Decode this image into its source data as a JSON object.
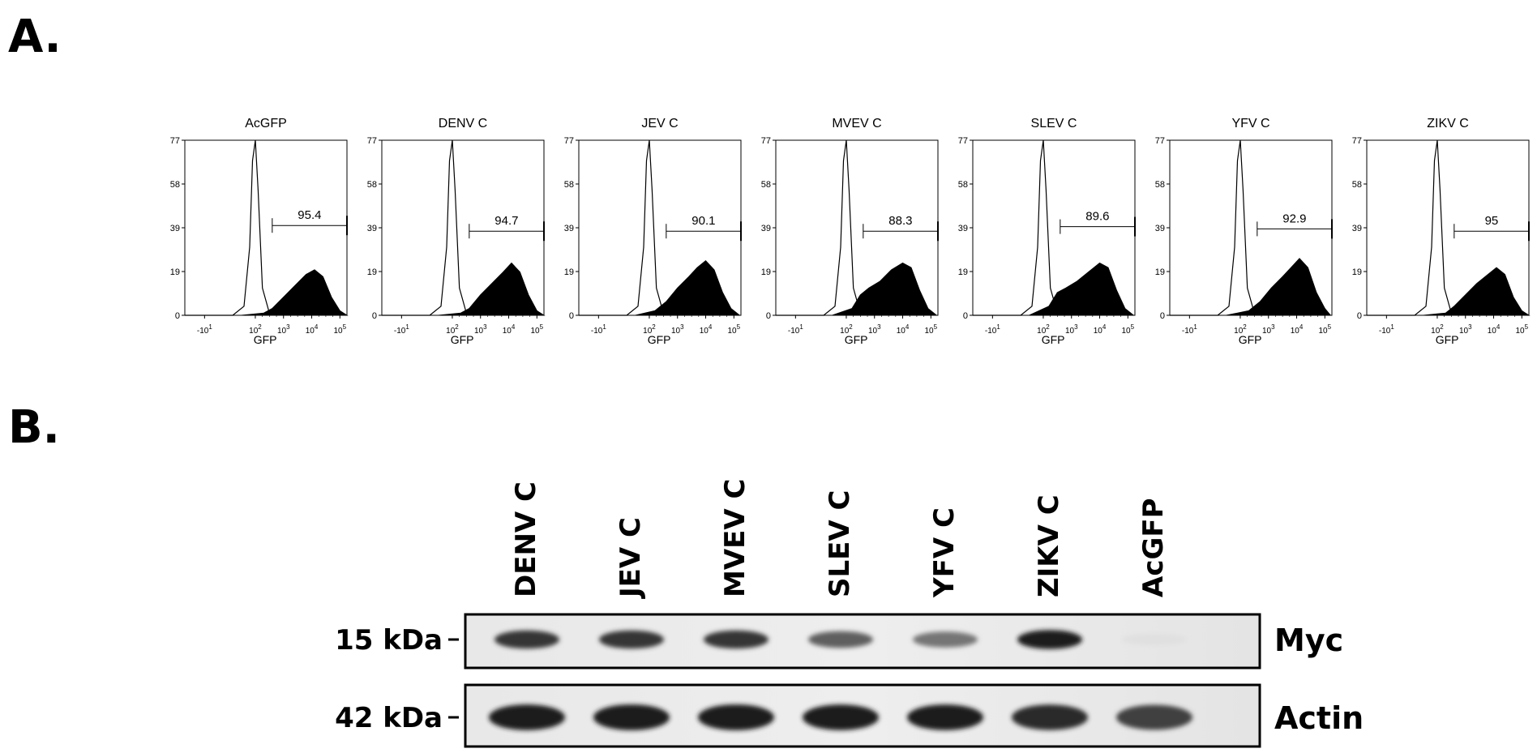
{
  "panel_labels": {
    "a": "A.",
    "b": "B."
  },
  "chart_data": [
    {
      "type": "area",
      "title": "AcGFP",
      "xlabel": "GFP",
      "yticks": [
        "0",
        "19",
        "39",
        "58",
        "77"
      ],
      "ylim": [
        0,
        77
      ],
      "xticks": [
        "-10^1",
        "10^2",
        "10^3",
        "10^4",
        "10^5"
      ],
      "gate_value": "95.4",
      "gate_y": 39.5,
      "series": [
        {
          "name": "control",
          "fill": false,
          "x": [
            -0.5,
            1.2,
            1.6,
            1.8,
            1.9,
            2.0,
            2.1,
            2.25,
            2.5,
            3.0
          ],
          "y": [
            0,
            0,
            4,
            30,
            68,
            77,
            55,
            12,
            1,
            0
          ]
        },
        {
          "name": "sample",
          "fill": true,
          "x": [
            -0.5,
            1.5,
            2.3,
            2.6,
            3.0,
            3.4,
            3.8,
            4.1,
            4.4,
            4.7,
            5.0,
            5.25
          ],
          "y": [
            0,
            0,
            1,
            3,
            8,
            13,
            18,
            20,
            17,
            8,
            2,
            0
          ]
        }
      ]
    },
    {
      "type": "area",
      "title": "DENV C",
      "xlabel": "GFP",
      "yticks": [
        "0",
        "19",
        "39",
        "58",
        "77"
      ],
      "ylim": [
        0,
        77
      ],
      "xticks": [
        "-10^1",
        "10^2",
        "10^3",
        "10^4",
        "10^5"
      ],
      "gate_value": "94.7",
      "gate_y": 37,
      "series": [
        {
          "name": "control",
          "fill": false,
          "x": [
            -0.5,
            1.2,
            1.6,
            1.8,
            1.9,
            2.0,
            2.1,
            2.25,
            2.5,
            3.0
          ],
          "y": [
            0,
            0,
            4,
            30,
            68,
            77,
            55,
            12,
            1,
            0
          ]
        },
        {
          "name": "sample",
          "fill": true,
          "x": [
            -0.5,
            1.5,
            2.3,
            2.6,
            3.0,
            3.4,
            3.8,
            4.1,
            4.4,
            4.7,
            5.0,
            5.25
          ],
          "y": [
            0,
            0,
            1,
            3,
            9,
            14,
            19,
            23,
            19,
            9,
            2,
            0
          ]
        }
      ]
    },
    {
      "type": "area",
      "title": "JEV C",
      "xlabel": "GFP",
      "yticks": [
        "0",
        "19",
        "39",
        "58",
        "77"
      ],
      "ylim": [
        0,
        77
      ],
      "xticks": [
        "-10^1",
        "10^2",
        "10^3",
        "10^4",
        "10^5"
      ],
      "gate_value": "90.1",
      "gate_y": 37,
      "series": [
        {
          "name": "control",
          "fill": false,
          "x": [
            -0.5,
            1.2,
            1.6,
            1.8,
            1.9,
            2.0,
            2.1,
            2.25,
            2.5,
            3.0
          ],
          "y": [
            0,
            0,
            4,
            30,
            68,
            77,
            55,
            12,
            1,
            0
          ]
        },
        {
          "name": "sample",
          "fill": true,
          "x": [
            -0.5,
            1.5,
            2.2,
            2.6,
            3.0,
            3.4,
            3.7,
            4.0,
            4.3,
            4.6,
            4.9,
            5.2
          ],
          "y": [
            0,
            0,
            2,
            6,
            12,
            17,
            21,
            24,
            20,
            10,
            3,
            0
          ]
        }
      ]
    },
    {
      "type": "area",
      "title": "MVEV C",
      "xlabel": "GFP",
      "yticks": [
        "0",
        "19",
        "39",
        "58",
        "77"
      ],
      "ylim": [
        0,
        77
      ],
      "xticks": [
        "-10^1",
        "10^2",
        "10^3",
        "10^4",
        "10^5"
      ],
      "gate_value": "88.3",
      "gate_y": 37,
      "series": [
        {
          "name": "control",
          "fill": false,
          "x": [
            -0.5,
            1.2,
            1.6,
            1.8,
            1.9,
            2.0,
            2.1,
            2.25,
            2.5,
            3.0
          ],
          "y": [
            0,
            0,
            4,
            30,
            68,
            77,
            55,
            12,
            1,
            0
          ]
        },
        {
          "name": "sample",
          "fill": true,
          "x": [
            -0.5,
            1.5,
            2.2,
            2.5,
            2.8,
            3.2,
            3.6,
            4.0,
            4.3,
            4.6,
            4.9,
            5.2
          ],
          "y": [
            0,
            0,
            3,
            9,
            12,
            15,
            20,
            23,
            21,
            11,
            3,
            0
          ]
        }
      ]
    },
    {
      "type": "area",
      "title": "SLEV C",
      "xlabel": "GFP",
      "yticks": [
        "0",
        "19",
        "39",
        "58",
        "77"
      ],
      "ylim": [
        0,
        77
      ],
      "xticks": [
        "-10^1",
        "10^2",
        "10^3",
        "10^4",
        "10^5"
      ],
      "gate_value": "89.6",
      "gate_y": 39,
      "series": [
        {
          "name": "control",
          "fill": false,
          "x": [
            -0.5,
            1.2,
            1.6,
            1.8,
            1.9,
            2.0,
            2.1,
            2.25,
            2.5,
            3.0
          ],
          "y": [
            0,
            0,
            4,
            30,
            68,
            77,
            55,
            12,
            1,
            0
          ]
        },
        {
          "name": "sample",
          "fill": true,
          "x": [
            -0.5,
            1.5,
            2.2,
            2.5,
            2.8,
            3.2,
            3.6,
            4.0,
            4.3,
            4.6,
            4.9,
            5.2
          ],
          "y": [
            0,
            0,
            4,
            10,
            12,
            15,
            19,
            23,
            21,
            11,
            3,
            0
          ]
        }
      ]
    },
    {
      "type": "area",
      "title": "YFV C",
      "xlabel": "GFP",
      "yticks": [
        "0",
        "19",
        "39",
        "58",
        "77"
      ],
      "ylim": [
        0,
        77
      ],
      "xticks": [
        "-10^1",
        "10^2",
        "10^3",
        "10^4",
        "10^5"
      ],
      "gate_value": "92.9",
      "gate_y": 38,
      "series": [
        {
          "name": "control",
          "fill": false,
          "x": [
            -0.5,
            1.2,
            1.6,
            1.8,
            1.9,
            2.0,
            2.1,
            2.25,
            2.5,
            3.0
          ],
          "y": [
            0,
            0,
            4,
            30,
            68,
            77,
            55,
            12,
            1,
            0
          ]
        },
        {
          "name": "sample",
          "fill": true,
          "x": [
            -0.5,
            1.5,
            2.3,
            2.7,
            3.1,
            3.5,
            3.8,
            4.1,
            4.4,
            4.7,
            5.0,
            5.2
          ],
          "y": [
            0,
            0,
            2,
            6,
            12,
            17,
            21,
            25,
            21,
            10,
            3,
            0
          ]
        }
      ]
    },
    {
      "type": "area",
      "title": "ZIKV C",
      "xlabel": "GFP",
      "yticks": [
        "0",
        "19",
        "39",
        "58",
        "77"
      ],
      "ylim": [
        0,
        77
      ],
      "xticks": [
        "-10^1",
        "10^2",
        "10^3",
        "10^4",
        "10^5"
      ],
      "gate_value": "95",
      "gate_y": 37,
      "series": [
        {
          "name": "control",
          "fill": false,
          "x": [
            -0.5,
            1.2,
            1.6,
            1.8,
            1.9,
            2.0,
            2.1,
            2.25,
            2.5,
            3.0
          ],
          "y": [
            0,
            0,
            4,
            30,
            68,
            77,
            55,
            12,
            1,
            0
          ]
        },
        {
          "name": "sample",
          "fill": true,
          "x": [
            -0.5,
            1.5,
            2.3,
            2.6,
            3.0,
            3.4,
            3.8,
            4.1,
            4.4,
            4.7,
            5.0,
            5.25
          ],
          "y": [
            0,
            0,
            1,
            4,
            9,
            14,
            18,
            21,
            18,
            8,
            2,
            0
          ]
        }
      ]
    }
  ],
  "blot": {
    "lanes": [
      "DENV C",
      "JEV C",
      "MVEV C",
      "SLEV C",
      "YFV C",
      "ZIKV C",
      "AcGFP"
    ],
    "rows": [
      {
        "marker": "15 kDa",
        "name": "Myc",
        "intensity": [
          0.85,
          0.85,
          0.85,
          0.65,
          0.55,
          0.95,
          0.05
        ]
      },
      {
        "marker": "42 kDa",
        "name": "Actin",
        "intensity": [
          0.95,
          0.97,
          0.97,
          0.95,
          0.95,
          0.9,
          0.8
        ]
      }
    ]
  }
}
